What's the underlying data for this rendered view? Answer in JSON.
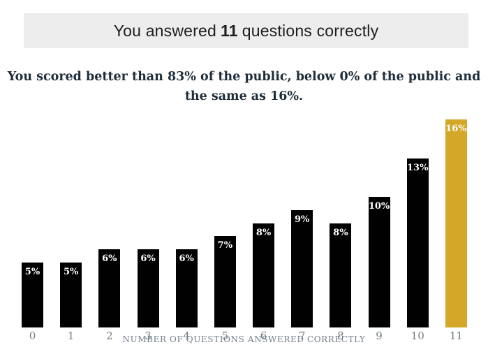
{
  "header": {
    "prefix": "You answered",
    "score": "11",
    "suffix": "questions correctly"
  },
  "subtitle": {
    "line1": "You scored better than 83% of the public, below 0% of the public and",
    "line2": "the same as 16%."
  },
  "chart_data": {
    "type": "bar",
    "categories": [
      "0",
      "1",
      "2",
      "3",
      "4",
      "5",
      "6",
      "7",
      "8",
      "9",
      "10",
      "11"
    ],
    "values": [
      5,
      5,
      6,
      6,
      6,
      7,
      8,
      9,
      8,
      10,
      13,
      16
    ],
    "labels": [
      "5%",
      "5%",
      "6%",
      "6%",
      "6%",
      "7%",
      "8%",
      "9%",
      "8%",
      "10%",
      "13%",
      "16%"
    ],
    "highlight_index": 11,
    "title": "You answered 11 questions correctly",
    "xlabel": "NUMBER OF QUESTIONS ANSWERED CORRECTLY",
    "ylabel": "",
    "ylim": [
      0,
      16
    ],
    "grid": false,
    "legend": "none",
    "bar_color": "#010101",
    "highlight_color": "#D5A728",
    "value_label_color": "#FFFFFF",
    "tick_label_color": "#6F7B85",
    "axis_title_color": "#75808C"
  },
  "colors": {
    "banner_bg": "#EDEDED",
    "banner_text": "#1E1E1E",
    "subtitle_text": "#1F2D3A",
    "page_bg": "#FFFFFF"
  }
}
